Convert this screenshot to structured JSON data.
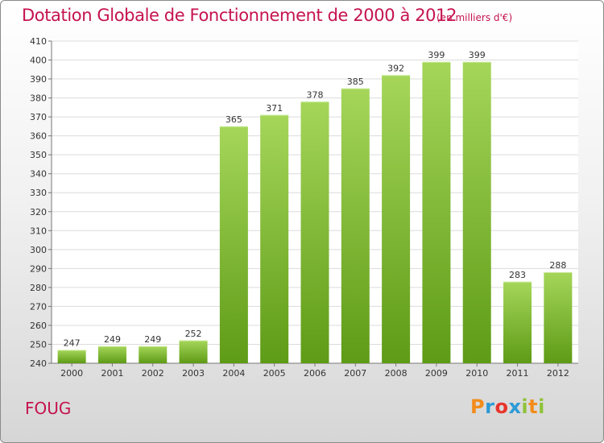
{
  "title": "Dotation Globale de Fonctionnement de 2000 à 2012",
  "unit_note": "(en milliers d'€)",
  "commune": "FOUG",
  "logo": {
    "letters": [
      "P",
      "r",
      "o",
      "x",
      "i",
      "t",
      "i"
    ],
    "colors": [
      "#f28c1b",
      "#2c9ad6",
      "#e8342c",
      "#2c9ad6",
      "#8fc33a",
      "#f28c1b",
      "#8fc33a"
    ]
  },
  "colors": {
    "accent": "#c5134f",
    "bar_top": "#a5d65a",
    "bar_bottom": "#5e9b16",
    "grid": "#dcdcdc"
  },
  "chart_data": {
    "type": "bar",
    "categories": [
      "2000",
      "2001",
      "2002",
      "2003",
      "2004",
      "2005",
      "2006",
      "2007",
      "2008",
      "2009",
      "2010",
      "2011",
      "2012"
    ],
    "values": [
      247,
      249,
      249,
      252,
      365,
      371,
      378,
      385,
      392,
      399,
      399,
      283,
      288
    ],
    "ylim": [
      240,
      410
    ],
    "yticks": [
      240,
      250,
      260,
      270,
      280,
      290,
      300,
      310,
      320,
      330,
      340,
      350,
      360,
      370,
      380,
      390,
      400,
      410
    ],
    "grid": true
  }
}
